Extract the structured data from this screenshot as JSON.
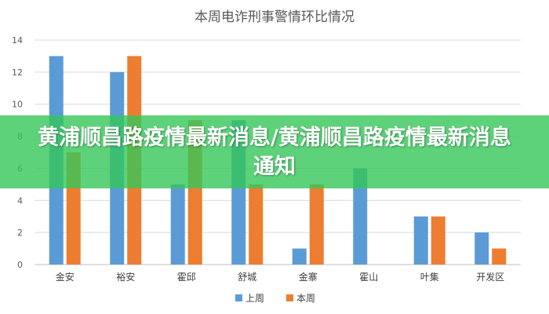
{
  "chart_data": {
    "type": "bar",
    "title": "本周电诈刑事警情环比情况",
    "categories": [
      "金安",
      "裕安",
      "霍邱",
      "舒城",
      "金寨",
      "霍山",
      "叶集",
      "开发区"
    ],
    "series": [
      {
        "name": "上周",
        "values": [
          13,
          12,
          5,
          9,
          1,
          6,
          3,
          2
        ],
        "color": "#5B9BD5"
      },
      {
        "name": "本周",
        "values": [
          7,
          13,
          9,
          5,
          5,
          0,
          3,
          1
        ],
        "color": "#ED7D31"
      }
    ],
    "ylim": [
      0,
      14
    ],
    "yticks": [
      "0",
      "2",
      "4",
      "6",
      "8",
      "10",
      "12",
      "14"
    ],
    "grid": true,
    "legend_position": "bottom"
  },
  "banner": {
    "text": "黄浦顺昌路疫情最新消息/黄浦顺昌路疫情最新消息通知",
    "color": "#34C759"
  }
}
